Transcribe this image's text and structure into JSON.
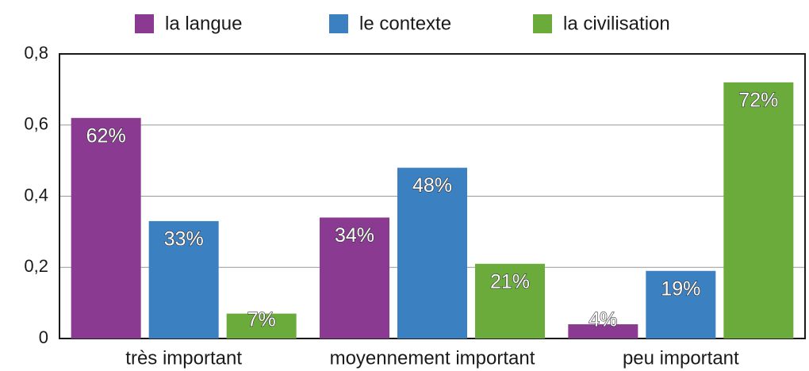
{
  "chart_data": {
    "type": "bar",
    "categories": [
      "très important",
      "moyennement important",
      "peu important"
    ],
    "series": [
      {
        "name": "la langue",
        "color": "#8b3a92",
        "values": [
          0.62,
          0.34,
          0.04
        ],
        "value_labels": [
          "62%",
          "34%",
          "4%"
        ]
      },
      {
        "name": "le contexte",
        "color": "#3b80c1",
        "values": [
          0.33,
          0.48,
          0.19
        ],
        "value_labels": [
          "33%",
          "48%",
          "19%"
        ]
      },
      {
        "name": "la civilisation",
        "color": "#6aab3c",
        "values": [
          0.07,
          0.21,
          0.72
        ],
        "value_labels": [
          "7%",
          "21%",
          "72%"
        ]
      }
    ],
    "ylim": [
      0,
      0.8
    ],
    "yticks": [
      0,
      {
        "value": 0.2,
        "label": "0,2"
      },
      {
        "value": 0.4,
        "label": "0,4"
      },
      {
        "value": 0.6,
        "label": "0,6"
      },
      {
        "value": 0.8,
        "label": "0,8"
      }
    ],
    "grid": true,
    "legend": "top"
  }
}
